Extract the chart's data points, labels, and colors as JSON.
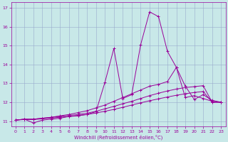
{
  "title": "",
  "xlabel": "Windchill (Refroidissement éolien,°C)",
  "ylabel": "",
  "bg_color": "#c8e8e8",
  "line_color": "#990099",
  "grid_color": "#99aacc",
  "xlim": [
    -0.5,
    23.5
  ],
  "ylim": [
    10.7,
    17.3
  ],
  "xticks": [
    0,
    1,
    2,
    3,
    4,
    5,
    6,
    7,
    8,
    9,
    10,
    11,
    12,
    13,
    14,
    15,
    16,
    17,
    18,
    19,
    20,
    21,
    22,
    23
  ],
  "yticks": [
    11,
    12,
    13,
    14,
    15,
    16,
    17
  ],
  "series": [
    {
      "x": [
        0,
        1,
        2,
        3,
        4,
        5,
        6,
        7,
        8,
        9,
        10,
        11,
        12,
        13,
        14,
        15,
        16,
        17,
        18,
        19,
        20,
        21,
        22,
        23
      ],
      "y": [
        11.05,
        11.1,
        10.9,
        11.05,
        11.1,
        11.15,
        11.25,
        11.3,
        11.35,
        11.5,
        13.05,
        14.85,
        12.2,
        12.4,
        15.05,
        16.8,
        16.55,
        14.7,
        13.85,
        12.85,
        12.15,
        12.4,
        12.1,
        12.0
      ]
    },
    {
      "x": [
        0,
        1,
        2,
        3,
        4,
        5,
        6,
        7,
        8,
        9,
        10,
        11,
        12,
        13,
        14,
        15,
        16,
        17,
        18,
        19,
        20,
        21,
        22,
        23
      ],
      "y": [
        11.05,
        11.1,
        11.1,
        11.15,
        11.2,
        11.28,
        11.35,
        11.45,
        11.55,
        11.7,
        11.85,
        12.05,
        12.25,
        12.45,
        12.65,
        12.85,
        12.95,
        13.1,
        13.85,
        12.25,
        12.35,
        12.2,
        12.05,
        12.0
      ]
    },
    {
      "x": [
        0,
        1,
        2,
        3,
        4,
        5,
        6,
        7,
        8,
        9,
        10,
        11,
        12,
        13,
        14,
        15,
        16,
        17,
        18,
        19,
        20,
        21,
        22,
        23
      ],
      "y": [
        11.05,
        11.1,
        11.1,
        11.15,
        11.2,
        11.25,
        11.3,
        11.35,
        11.42,
        11.52,
        11.65,
        11.78,
        11.92,
        12.05,
        12.2,
        12.35,
        12.48,
        12.6,
        12.7,
        12.78,
        12.83,
        12.88,
        12.0,
        12.0
      ]
    },
    {
      "x": [
        0,
        1,
        2,
        3,
        4,
        5,
        6,
        7,
        8,
        9,
        10,
        11,
        12,
        13,
        14,
        15,
        16,
        17,
        18,
        19,
        20,
        21,
        22,
        23
      ],
      "y": [
        11.05,
        11.08,
        11.08,
        11.12,
        11.16,
        11.2,
        11.24,
        11.28,
        11.35,
        11.43,
        11.52,
        11.62,
        11.73,
        11.85,
        11.97,
        12.08,
        12.18,
        12.28,
        12.37,
        12.45,
        12.52,
        12.57,
        12.0,
        12.0
      ]
    }
  ]
}
